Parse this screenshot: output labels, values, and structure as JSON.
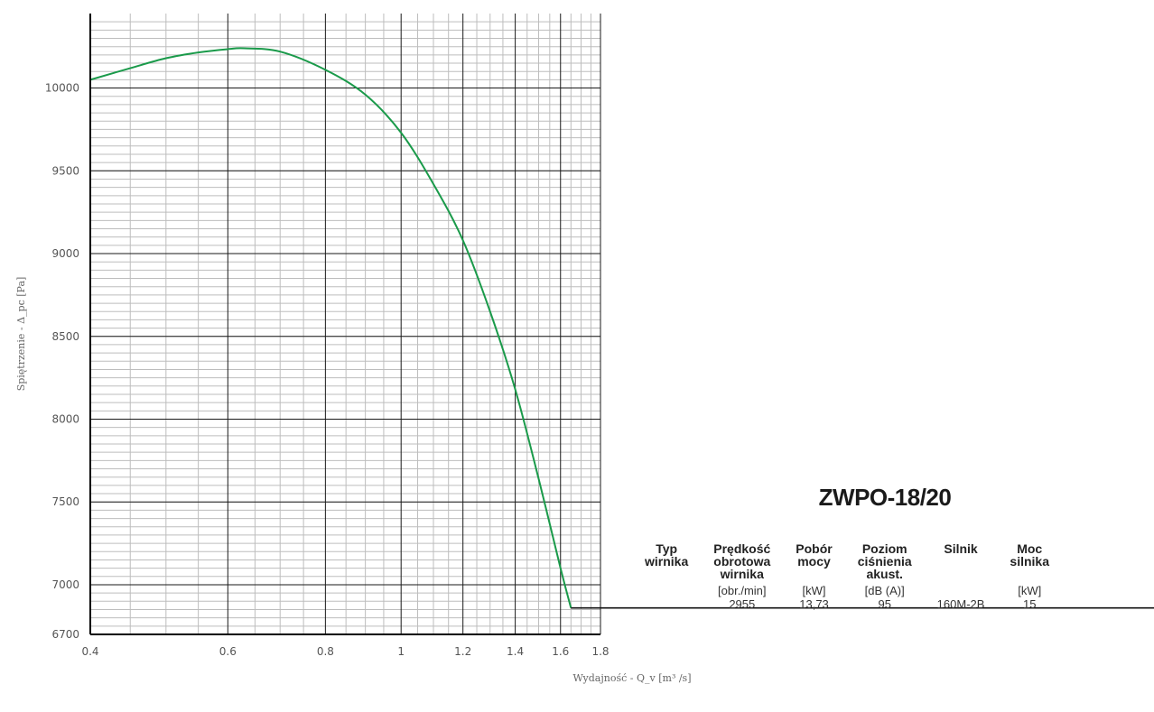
{
  "chart_data": {
    "type": "line",
    "title": "",
    "xlabel": "Wydajność - Q_v [m³ /s]",
    "ylabel": "Spiętrzenie - Δ_pc [Pa]",
    "xlim": [
      0.4,
      1.8
    ],
    "ylim": [
      6700,
      10450
    ],
    "x_scale": "log",
    "xticks": [
      "0.4",
      "0.6",
      "0.8",
      "1",
      "1.2",
      "1.4",
      "1.6",
      "1.8"
    ],
    "yticks": [
      "6700",
      "7000",
      "7500",
      "8000",
      "8500",
      "9000",
      "9500",
      "10000"
    ],
    "grid": true,
    "series": [
      {
        "color": "#1a9a4a",
        "x": [
          0.4,
          0.45,
          0.5,
          0.55,
          0.6,
          0.63,
          0.7,
          0.8,
          0.9,
          1.0,
          1.1,
          1.2,
          1.3,
          1.4,
          1.5,
          1.6,
          1.65
        ],
        "y": [
          10050,
          10120,
          10180,
          10215,
          10235,
          10240,
          10220,
          10110,
          9960,
          9730,
          9420,
          9080,
          8650,
          8180,
          7640,
          7100,
          6860
        ]
      }
    ]
  },
  "product": {
    "title": "ZWPO-18/20",
    "headers": [
      "Typ\nwirnika",
      "Prędkość\nobrotowa\nwirnika",
      "Pobór\nmocy",
      "Poziom\nciśnienia\nakust.",
      "Silnik",
      "Moc\nsilnika"
    ],
    "units": [
      "",
      "[obr./min]",
      "[kW]",
      "[dB (A)]",
      "",
      "[kW]"
    ],
    "values": [
      "",
      "2955",
      "13,73",
      "95",
      "160M-2B",
      "15"
    ]
  },
  "colors": {
    "curve": "#1a9a4a",
    "grid_major": "#1a1a1a",
    "grid_minor": "#bdbdbd",
    "axis": "#000000"
  }
}
